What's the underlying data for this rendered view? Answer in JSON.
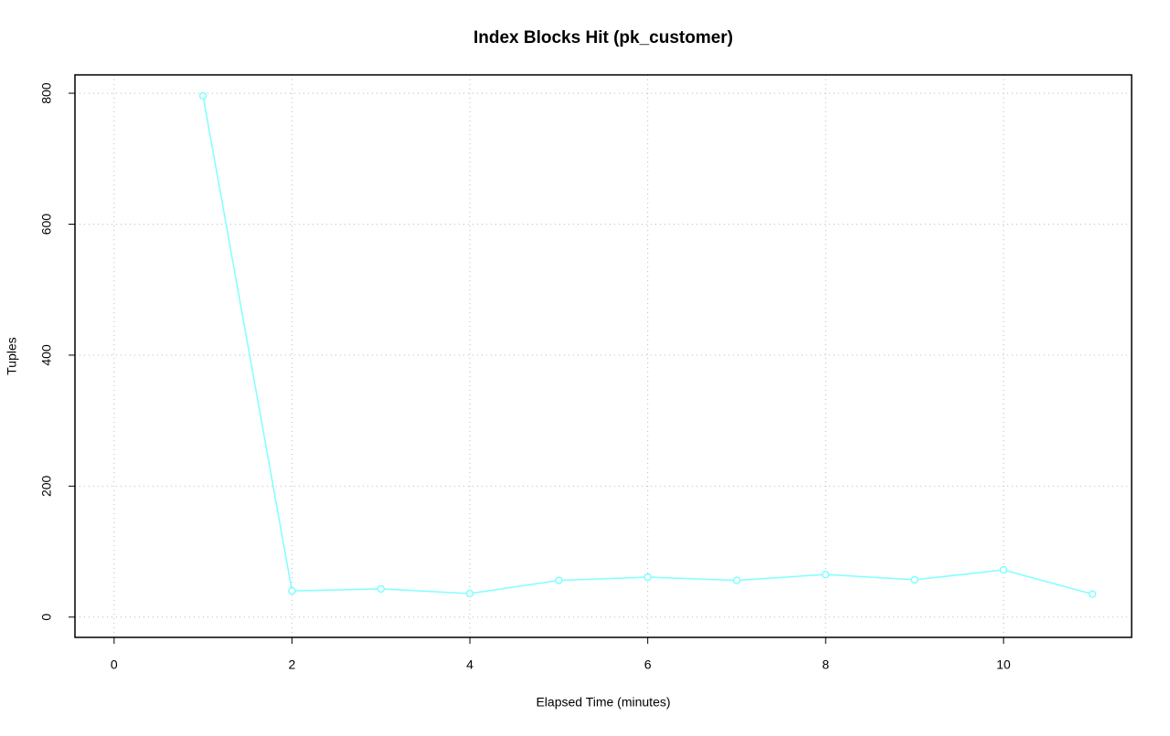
{
  "chart_data": {
    "type": "line",
    "title": "Index Blocks Hit (pk_customer)",
    "x_label": "Elapsed Time (minutes)",
    "y_label": "Tuples",
    "x": [
      1,
      2,
      3,
      4,
      5,
      6,
      7,
      8,
      9,
      10,
      11
    ],
    "values": [
      796,
      40,
      43,
      36,
      56,
      61,
      56,
      65,
      57,
      72,
      35
    ],
    "color": "#80ffff",
    "xlim": [
      -0.44,
      11.44
    ],
    "xticks": [
      0,
      2,
      4,
      6,
      8,
      10
    ],
    "ylim": [
      -31,
      828
    ],
    "yticks": [
      0,
      200,
      400,
      600,
      800
    ],
    "grid": true
  }
}
